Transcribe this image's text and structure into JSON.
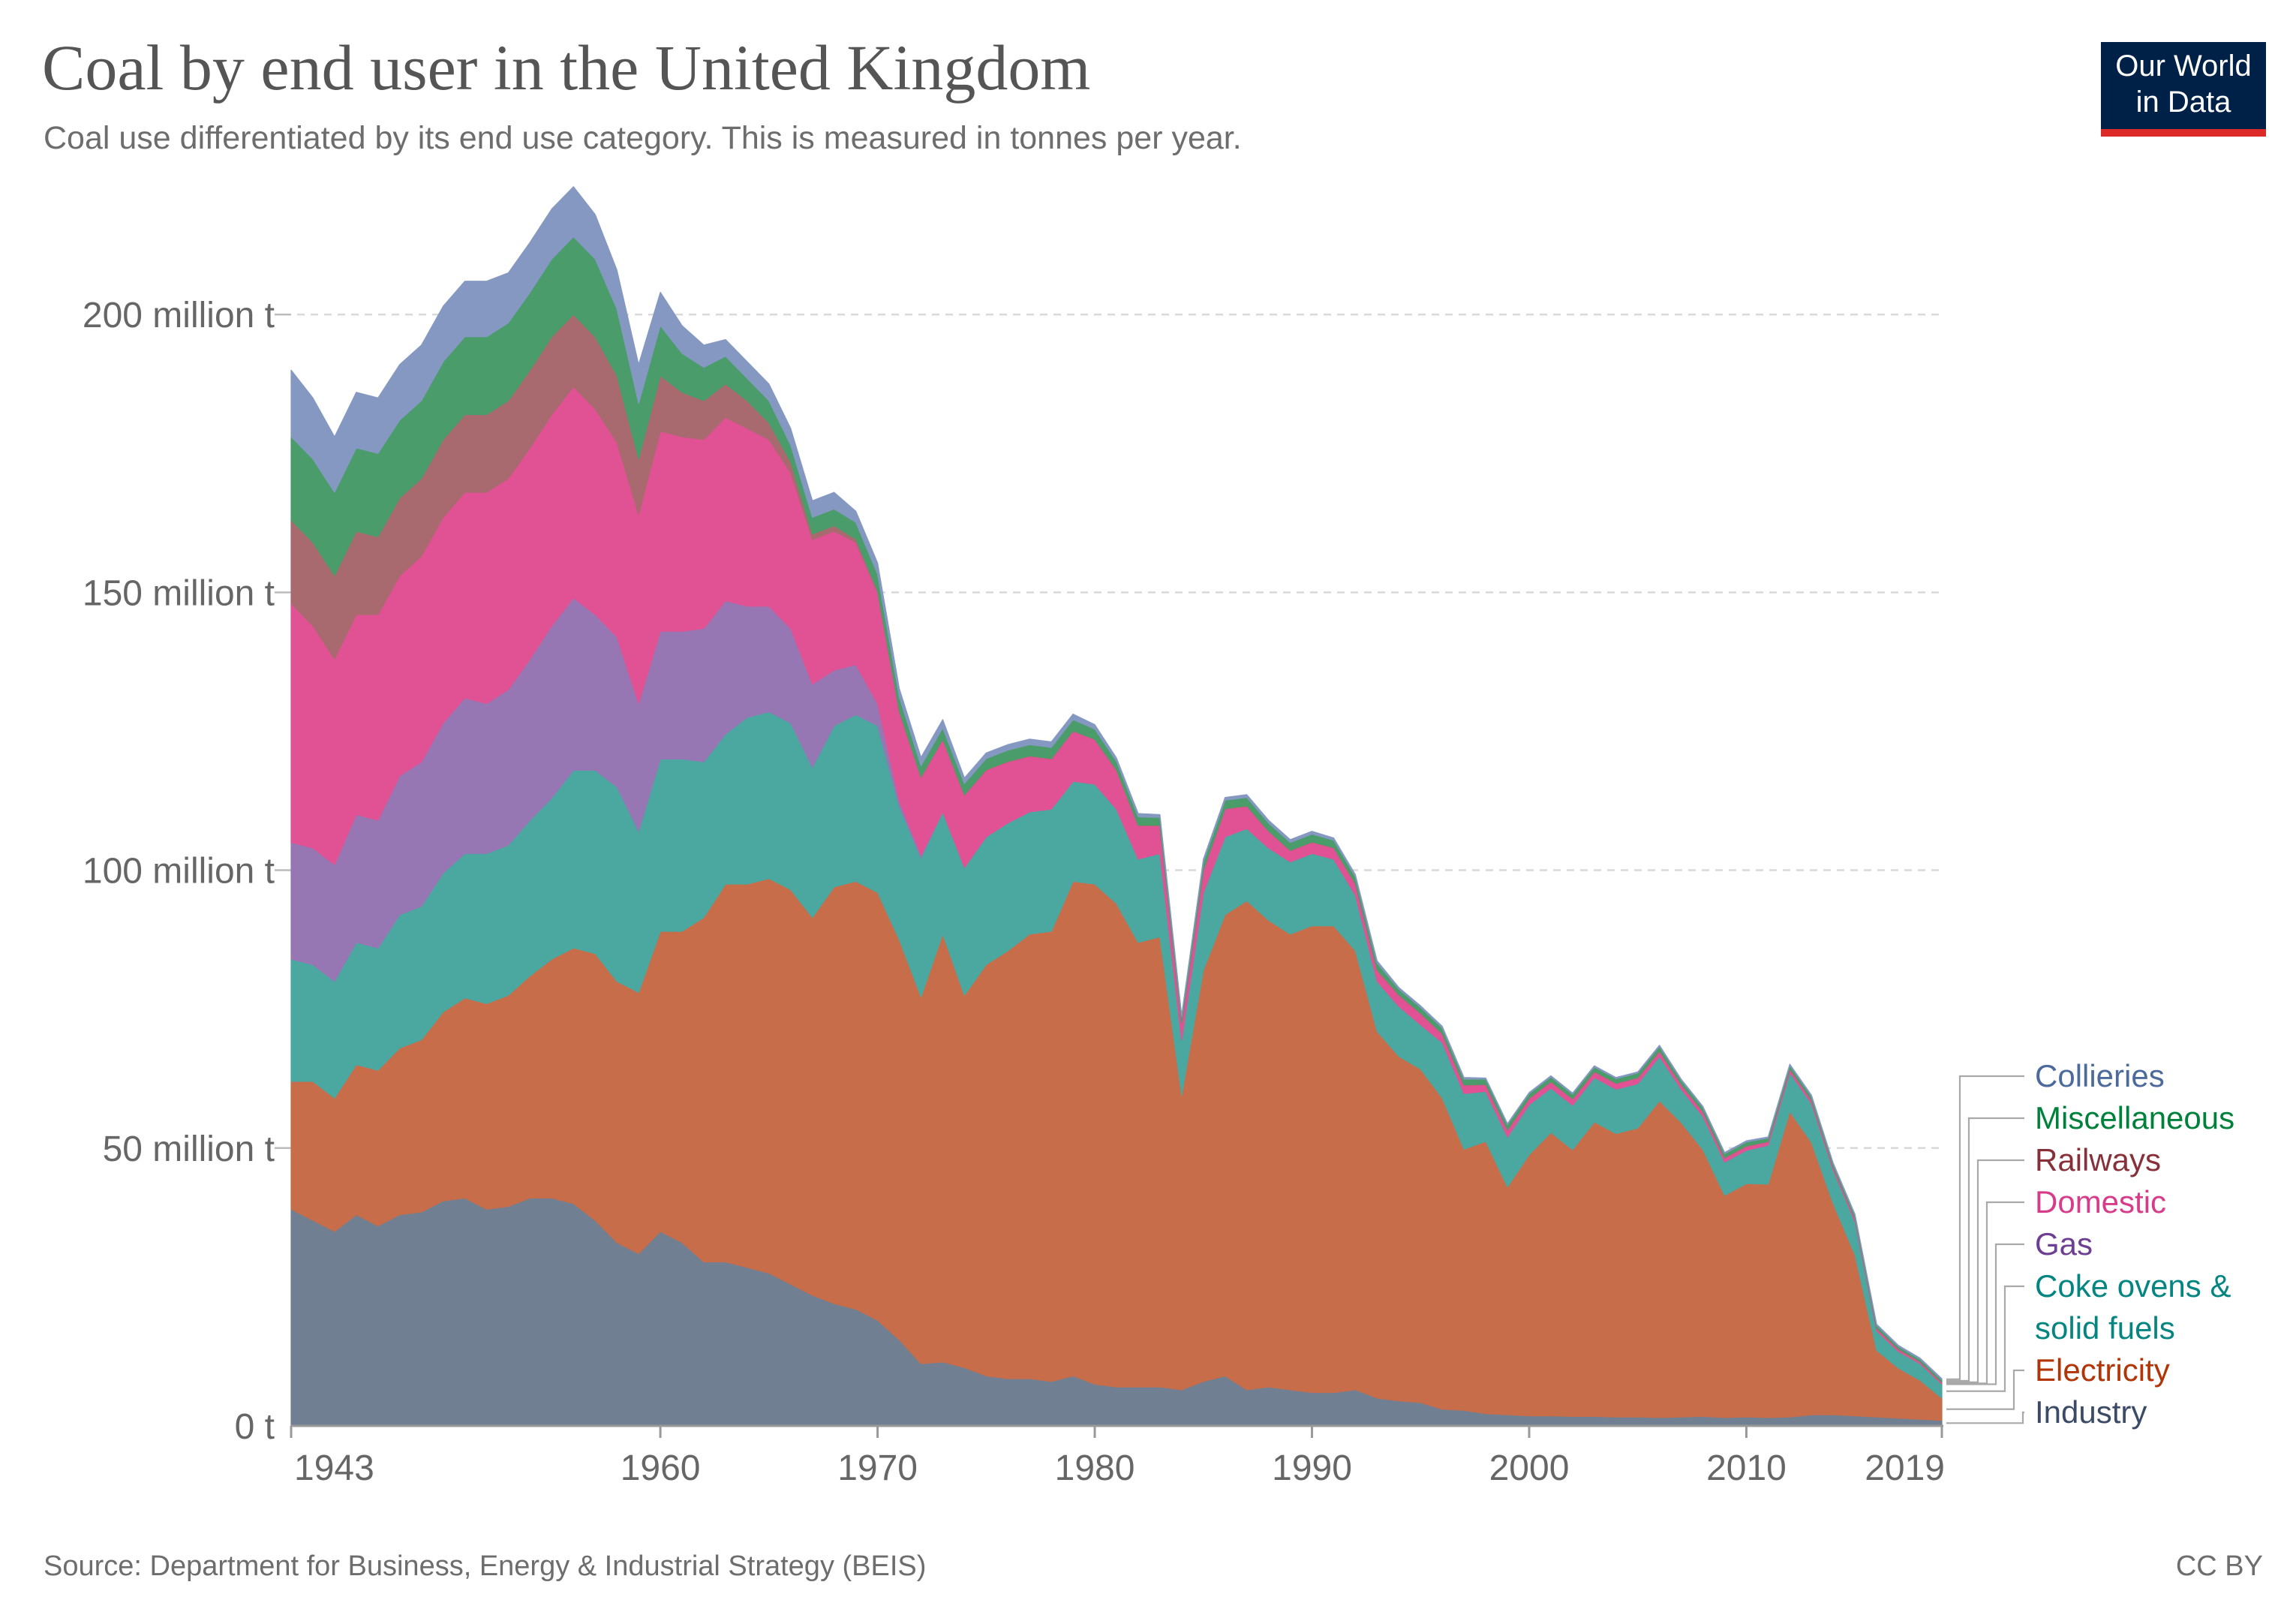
{
  "title": "Coal by end user in the United Kingdom",
  "subtitle": "Coal use differentiated by its end use category. This is measured in tonnes per year.",
  "logo": {
    "line1": "Our World",
    "line2": "in Data"
  },
  "source": "Source: Department for Business, Energy & Industrial Strategy (BEIS)",
  "license": "CC BY",
  "chart_data": {
    "type": "area",
    "stacked": true,
    "y_unit": "million t",
    "ylim": [
      0,
      220
    ],
    "grid": true,
    "legend_placement": "right",
    "x_ticks": [
      1943,
      1960,
      1970,
      1980,
      1990,
      2000,
      2010,
      2019
    ],
    "y_ticks": [
      {
        "value": 0,
        "label": "0 t"
      },
      {
        "value": 50,
        "label": "50 million t"
      },
      {
        "value": 100,
        "label": "100 million t"
      },
      {
        "value": 150,
        "label": "150 million t"
      },
      {
        "value": 200,
        "label": "200 million t"
      }
    ],
    "x": [
      1943,
      1944,
      1945,
      1946,
      1947,
      1948,
      1949,
      1950,
      1951,
      1952,
      1953,
      1954,
      1955,
      1956,
      1957,
      1958,
      1959,
      1960,
      1961,
      1962,
      1963,
      1964,
      1965,
      1966,
      1967,
      1968,
      1969,
      1970,
      1971,
      1972,
      1973,
      1974,
      1975,
      1976,
      1977,
      1978,
      1979,
      1980,
      1981,
      1982,
      1983,
      1984,
      1985,
      1986,
      1987,
      1988,
      1989,
      1990,
      1991,
      1992,
      1993,
      1994,
      1995,
      1996,
      1997,
      1998,
      1999,
      2000,
      2001,
      2002,
      2003,
      2004,
      2005,
      2006,
      2007,
      2008,
      2009,
      2010,
      2011,
      2012,
      2013,
      2014,
      2015,
      2016,
      2017,
      2018,
      2019
    ],
    "series": [
      {
        "name": "Industry",
        "color": "#717f93",
        "label_color": "#3b4a66",
        "values": [
          39,
          37,
          35,
          38,
          36,
          38,
          38.5,
          40.5,
          41,
          39,
          39.5,
          41,
          41,
          40,
          37,
          33,
          31,
          35,
          33,
          29.5,
          29.5,
          28.5,
          27.5,
          25.5,
          23.5,
          22,
          21,
          19,
          15.5,
          11.2,
          11.5,
          10.5,
          9,
          8.5,
          8.5,
          8,
          9,
          7.5,
          7,
          7,
          7,
          6.5,
          8,
          9,
          6.5,
          7,
          6.5,
          6,
          6,
          6.5,
          5,
          4.5,
          4.2,
          3,
          2.8,
          2.2,
          2,
          1.8,
          1.8,
          1.7,
          1.7,
          1.6,
          1.6,
          1.5,
          1.6,
          1.7,
          1.5,
          1.6,
          1.5,
          1.6,
          2,
          2,
          1.8,
          1.6,
          1.4,
          1.2,
          1
        ]
      },
      {
        "name": "Electricity",
        "color": "#c76d49",
        "label_color": "#b13507",
        "values": [
          23,
          25,
          24,
          27,
          28,
          30,
          31,
          34,
          36,
          37,
          38,
          40,
          43,
          46,
          48,
          47,
          47,
          54,
          56,
          62,
          68,
          69,
          71,
          71,
          68,
          75,
          77,
          77,
          72,
          66,
          77,
          67,
          74,
          77,
          80,
          81,
          89,
          90,
          87,
          80,
          81,
          53,
          74,
          83,
          88,
          84,
          82,
          84,
          84,
          79,
          66,
          62,
          60,
          56,
          47,
          49,
          41,
          47,
          51,
          48,
          53,
          51,
          52,
          57,
          53,
          48,
          40,
          42,
          42,
          55,
          49,
          38,
          29,
          12,
          9,
          7,
          4
        ]
      },
      {
        "name": "Coke ovens & solid fuels",
        "color": "#4aa8a1",
        "label_color": "#058581",
        "values": [
          22,
          21,
          21,
          22,
          22,
          24,
          24,
          25,
          26,
          27,
          27,
          28,
          29,
          32,
          33,
          35,
          29,
          31,
          31,
          28,
          27,
          30,
          30,
          30,
          27,
          29,
          30,
          30,
          24,
          25,
          22,
          23,
          23,
          23,
          22,
          22,
          18,
          18,
          17,
          15,
          15,
          10,
          14,
          14,
          13,
          13,
          13,
          13,
          12,
          10,
          9,
          9,
          8,
          10,
          10,
          9,
          9,
          9,
          8,
          8,
          8,
          8,
          8,
          8,
          6,
          6,
          6,
          6,
          7,
          7,
          7,
          6,
          6,
          3.5,
          3,
          3,
          2.5
        ]
      },
      {
        "name": "Gas",
        "color": "#9677b3",
        "label_color": "#6d3e91",
        "values": [
          21,
          21,
          21,
          23,
          23,
          25,
          26,
          27,
          28,
          27,
          28,
          29,
          31,
          31,
          28,
          27,
          23,
          23,
          23,
          24,
          24,
          20,
          19,
          17,
          15,
          10,
          9,
          4,
          1,
          0.5,
          0,
          0,
          0,
          0,
          0,
          0,
          0,
          0,
          0,
          0,
          0,
          0,
          0,
          0,
          0,
          0,
          0,
          0,
          0,
          0,
          0,
          0,
          0,
          0,
          0,
          0,
          0,
          0,
          0,
          0,
          0,
          0,
          0,
          0,
          0,
          0,
          0,
          0,
          0,
          0,
          0,
          0,
          0,
          0,
          0,
          0,
          0
        ]
      },
      {
        "name": "Domestic",
        "color": "#e05294",
        "label_color": "#d73c8b",
        "values": [
          43,
          40,
          37,
          36,
          37,
          36,
          37,
          37,
          37,
          38,
          38,
          38,
          38,
          38,
          37,
          35,
          34,
          36,
          35,
          34,
          33,
          32,
          30,
          28,
          26,
          25,
          22,
          20,
          16,
          14,
          13,
          13,
          12,
          11,
          10,
          9,
          9,
          8,
          7,
          6,
          5,
          3,
          4,
          5,
          4,
          3,
          2,
          2,
          2,
          2,
          2,
          2,
          2,
          1.5,
          1.5,
          1.2,
          1.2,
          1.1,
          1.1,
          1.1,
          1,
          1,
          1,
          0.9,
          0.8,
          0.8,
          0.7,
          0.7,
          0.6,
          0.6,
          0.6,
          0.5,
          0.5,
          0.4,
          0.4,
          0.3,
          0.3
        ]
      },
      {
        "name": "Railways",
        "color": "#a86a6f",
        "label_color": "#883039",
        "values": [
          15,
          15,
          15,
          15,
          14,
          14,
          14,
          14,
          14,
          14,
          14,
          14,
          14,
          13,
          13,
          12,
          10,
          10,
          8,
          7,
          6,
          5,
          3,
          2,
          1,
          1,
          0.6,
          0.3,
          0.2,
          0.1,
          0.1,
          0.1,
          0.1,
          0.1,
          0.1,
          0.1,
          0.1,
          0.1,
          0.1,
          0.1,
          0.1,
          0.1,
          0.1,
          0.1,
          0.1,
          0.1,
          0.1,
          0.1,
          0.1,
          0.1,
          0.1,
          0.1,
          0.1,
          0.1,
          0.1,
          0.1,
          0.1,
          0.1,
          0.1,
          0.1,
          0.1,
          0.1,
          0.1,
          0.1,
          0.1,
          0.1,
          0.1,
          0.1,
          0.1,
          0.1,
          0.1,
          0.1,
          0.1,
          0.1,
          0.1,
          0.1,
          0.1
        ]
      },
      {
        "name": "Miscellaneous",
        "color": "#4a9d6a",
        "label_color": "#00813b",
        "values": [
          15,
          15,
          15,
          15,
          15,
          14,
          14,
          14,
          14,
          14,
          14,
          14,
          14,
          14,
          14,
          12,
          10,
          9,
          7,
          6,
          5,
          4,
          4,
          3,
          3,
          3,
          3,
          3,
          2.5,
          2,
          2,
          2,
          2,
          2,
          2,
          2,
          2,
          1.8,
          1.5,
          1.5,
          1.4,
          1,
          1.4,
          1.5,
          1.5,
          1.4,
          1.4,
          1.4,
          1.3,
          1.2,
          1.2,
          1,
          1,
          1,
          1,
          0.9,
          0.9,
          0.8,
          0.8,
          0.8,
          0.8,
          0.8,
          0.8,
          0.8,
          0.7,
          0.7,
          0.7,
          0.7,
          0.6,
          0.6,
          0.6,
          0.5,
          0.5,
          0.5,
          0.4,
          0.4,
          0.4
        ]
      },
      {
        "name": "Collieries",
        "color": "#8598c2",
        "label_color": "#4c6a9c",
        "values": [
          12,
          11,
          10,
          10,
          10,
          10,
          10,
          10,
          10,
          10,
          9,
          9,
          9,
          9,
          8,
          7,
          7,
          6,
          5,
          4,
          3,
          3,
          3,
          3,
          3,
          3,
          2,
          2,
          1.5,
          1.5,
          1.5,
          1,
          1,
          1,
          1,
          1,
          1,
          0.8,
          0.6,
          0.6,
          0.5,
          0.3,
          0.5,
          0.5,
          0.5,
          0.5,
          0.5,
          0.5,
          0.4,
          0.4,
          0.4,
          0.3,
          0.3,
          0.3,
          0.3,
          0.2,
          0.2,
          0.2,
          0.2,
          0.2,
          0.2,
          0.2,
          0.2,
          0.2,
          0.2,
          0.2,
          0.2,
          0.2,
          0.2,
          0.2,
          0.2,
          0.2,
          0.2,
          0.2,
          0.2,
          0.2,
          0.2
        ]
      }
    ],
    "legend_order": [
      "Collieries",
      "Miscellaneous",
      "Railways",
      "Domestic",
      "Gas",
      "Coke ovens & solid fuels",
      "Electricity",
      "Industry"
    ],
    "legend_text": {
      "Collieries": [
        "Collieries"
      ],
      "Miscellaneous": [
        "Miscellaneous"
      ],
      "Railways": [
        "Railways"
      ],
      "Domestic": [
        "Domestic"
      ],
      "Gas": [
        "Gas"
      ],
      "Coke ovens & solid fuels": [
        "Coke ovens &",
        "solid fuels"
      ],
      "Electricity": [
        "Electricity"
      ],
      "Industry": [
        "Industry"
      ]
    }
  }
}
